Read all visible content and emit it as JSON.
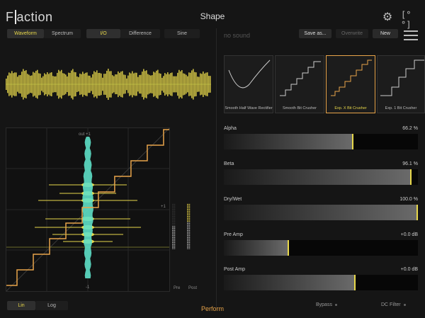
{
  "app": {
    "logo": "Fraction",
    "title": "Shape"
  },
  "header_icons": {
    "settings": "gear-icon",
    "fullscreen": "[°°]"
  },
  "view_modes": [
    "Waveform",
    "Spectrum"
  ],
  "view_active": 0,
  "signal_modes": [
    "I/O",
    "Difference",
    "Sine"
  ],
  "signal_active": 0,
  "preset": {
    "placeholder": "no sound",
    "buttons": {
      "save_as": "Save as...",
      "overwrite": "Overwrite",
      "new": "New"
    }
  },
  "presets": [
    {
      "name": "Smooth Half Wave Rectifier",
      "selected": false
    },
    {
      "name": "Smooth Bit Crusher",
      "selected": false
    },
    {
      "name": "Exp. X Bit Crusher",
      "selected": true
    },
    {
      "name": "Exp. 1 Bit Crusher",
      "selected": false
    }
  ],
  "plot": {
    "top_label": "out +1",
    "right_label": "+1",
    "bottom_label": "-1"
  },
  "meters": {
    "pre_label": "Pre",
    "post_label": "Post"
  },
  "params": [
    {
      "label": "Alpha",
      "value": "66.2 %",
      "fraction": 0.662
    },
    {
      "label": "Beta",
      "value": "96.1 %",
      "fraction": 0.961
    },
    {
      "label": "Dry/Wet",
      "value": "100.0 %",
      "fraction": 1.0
    },
    {
      "label": "Pre Amp",
      "value": "+0.0 dB",
      "fraction": 0.33
    },
    {
      "label": "Post Amp",
      "value": "+0.0 dB",
      "fraction": 0.67
    }
  ],
  "scale_modes": [
    "Lin",
    "Log"
  ],
  "scale_active": 0,
  "footer": {
    "perform": "Perform",
    "bypass": "Bypass",
    "dc_filter": "DC Filter"
  },
  "colors": {
    "accent": "#e8d84a",
    "orange": "#e8a44a",
    "cyan": "#5ee0c8",
    "background": "#151515"
  }
}
